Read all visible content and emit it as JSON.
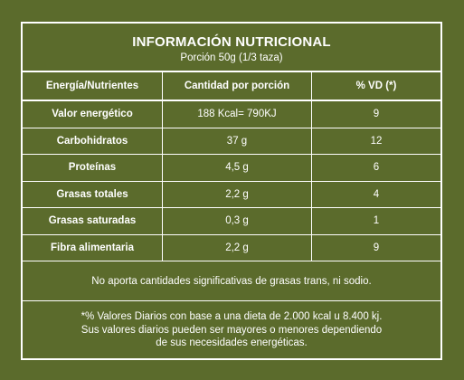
{
  "title": "INFORMACIÓN NUTRICIONAL",
  "subtitle": "Porción 50g (1/3 taza)",
  "columns": [
    "Energía/Nutrientes",
    "Cantidad por porción",
    "% VD (*)"
  ],
  "rows": [
    {
      "name": "Valor energético",
      "amount": "188 Kcal= 790KJ",
      "vd": "9"
    },
    {
      "name": "Carbohidratos",
      "amount": "37 g",
      "vd": "12"
    },
    {
      "name": "Proteínas",
      "amount": "4,5 g",
      "vd": "6"
    },
    {
      "name": "Grasas totales",
      "amount": "2,2 g",
      "vd": "4"
    },
    {
      "name": "Grasas saturadas",
      "amount": "0,3 g",
      "vd": "1"
    },
    {
      "name": "Fibra alimentaria",
      "amount": "2,2 g",
      "vd": "9"
    }
  ],
  "note_trans": "No aporta cantidades significativas de grasas trans, ni sodio.",
  "footnote": [
    "*% Valores Diarios con base a una dieta de 2.000 kcal u 8.400 kj.",
    "Sus valores diarios pueden ser mayores o menores dependiendo",
    "de sus necesidades energéticas."
  ],
  "colors": {
    "background": "#5b6b2c",
    "text": "#ffffff"
  }
}
